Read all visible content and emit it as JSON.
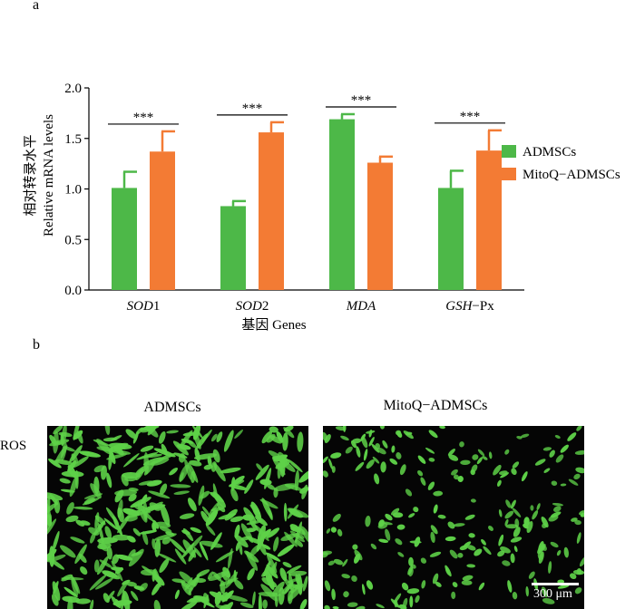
{
  "panels": {
    "a": "a",
    "b": "b"
  },
  "chart_data": {
    "type": "bar",
    "ylabel_cn": "相对转录水平",
    "ylabel": "Relative mRNA levels",
    "xlabel": "基因 Genes",
    "categories": [
      {
        "italic": "SOD",
        "plain": "1"
      },
      {
        "italic": "SOD",
        "plain": "2"
      },
      {
        "italic": "MDA",
        "plain": ""
      },
      {
        "italic": "GSH",
        "plain": "−Px"
      }
    ],
    "ylim": [
      0,
      2.0
    ],
    "yticks": [
      "0.0",
      "0.5",
      "1.0",
      "1.5",
      "2.0"
    ],
    "series": [
      {
        "name": "ADMSCs",
        "color": "#4db848",
        "values": [
          1.01,
          0.83,
          1.69,
          1.01
        ],
        "errors": [
          0.16,
          0.05,
          0.05,
          0.17
        ]
      },
      {
        "name": "MitoQ−ADMSCs",
        "color": "#f37b34",
        "values": [
          1.37,
          1.56,
          1.26,
          1.38
        ],
        "errors": [
          0.2,
          0.1,
          0.06,
          0.2
        ]
      }
    ],
    "significance": [
      "***",
      "***",
      "***",
      "***"
    ],
    "legend_position": "right"
  },
  "images": {
    "left_title": "ADMSCs",
    "right_title": "MitoQ−ADMSCs",
    "row_label": "ROS",
    "scale_bar": "300 μm",
    "cell_color": "#5ed148"
  }
}
